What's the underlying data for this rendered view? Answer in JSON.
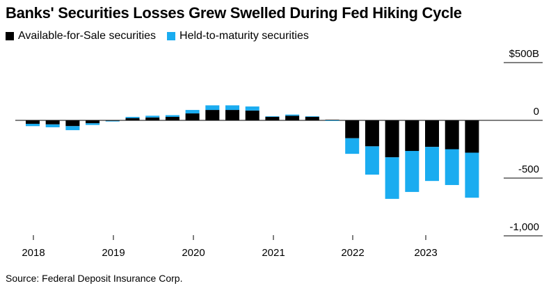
{
  "chart_data": {
    "type": "bar",
    "stacked": true,
    "title": "Banks' Securities Losses Grew Swelled During Fed Hiking Cycle",
    "source": "Source: Federal Deposit Insurance Corp.",
    "xlabel": "",
    "ylabel": "",
    "ylim": [
      -1000,
      500
    ],
    "yticks": [
      {
        "value": 500,
        "label": "$500B"
      },
      {
        "value": 0,
        "label": "0"
      },
      {
        "value": -500,
        "label": "-500"
      },
      {
        "value": -1000,
        "label": "-1,000"
      }
    ],
    "x_axis_years": [
      "2018",
      "2019",
      "2020",
      "2021",
      "2022",
      "2023"
    ],
    "categories": [
      "2018 Q1",
      "2018 Q2",
      "2018 Q3",
      "2018 Q4",
      "2019 Q1",
      "2019 Q2",
      "2019 Q3",
      "2019 Q4",
      "2020 Q1",
      "2020 Q2",
      "2020 Q3",
      "2020 Q4",
      "2021 Q1",
      "2021 Q2",
      "2021 Q3",
      "2021 Q4",
      "2022 Q1",
      "2022 Q2",
      "2022 Q3",
      "2022 Q4",
      "2023 Q1",
      "2023 Q2",
      "2023 Q3"
    ],
    "series": [
      {
        "name": "Available-for-Sale securities",
        "color": "#000000",
        "values": [
          -30,
          -35,
          -50,
          -25,
          -5,
          20,
          25,
          30,
          60,
          90,
          90,
          85,
          30,
          40,
          30,
          5,
          -155,
          -225,
          -320,
          -265,
          -230,
          -250,
          -280
        ]
      },
      {
        "name": "Held-to-maturity securities",
        "color": "#1aacf0",
        "values": [
          -20,
          -25,
          -35,
          -15,
          -3,
          10,
          15,
          15,
          30,
          40,
          40,
          35,
          5,
          10,
          5,
          -5,
          -135,
          -245,
          -360,
          -355,
          -295,
          -310,
          -390
        ]
      }
    ],
    "grid": true,
    "legend_position": "top-left"
  }
}
